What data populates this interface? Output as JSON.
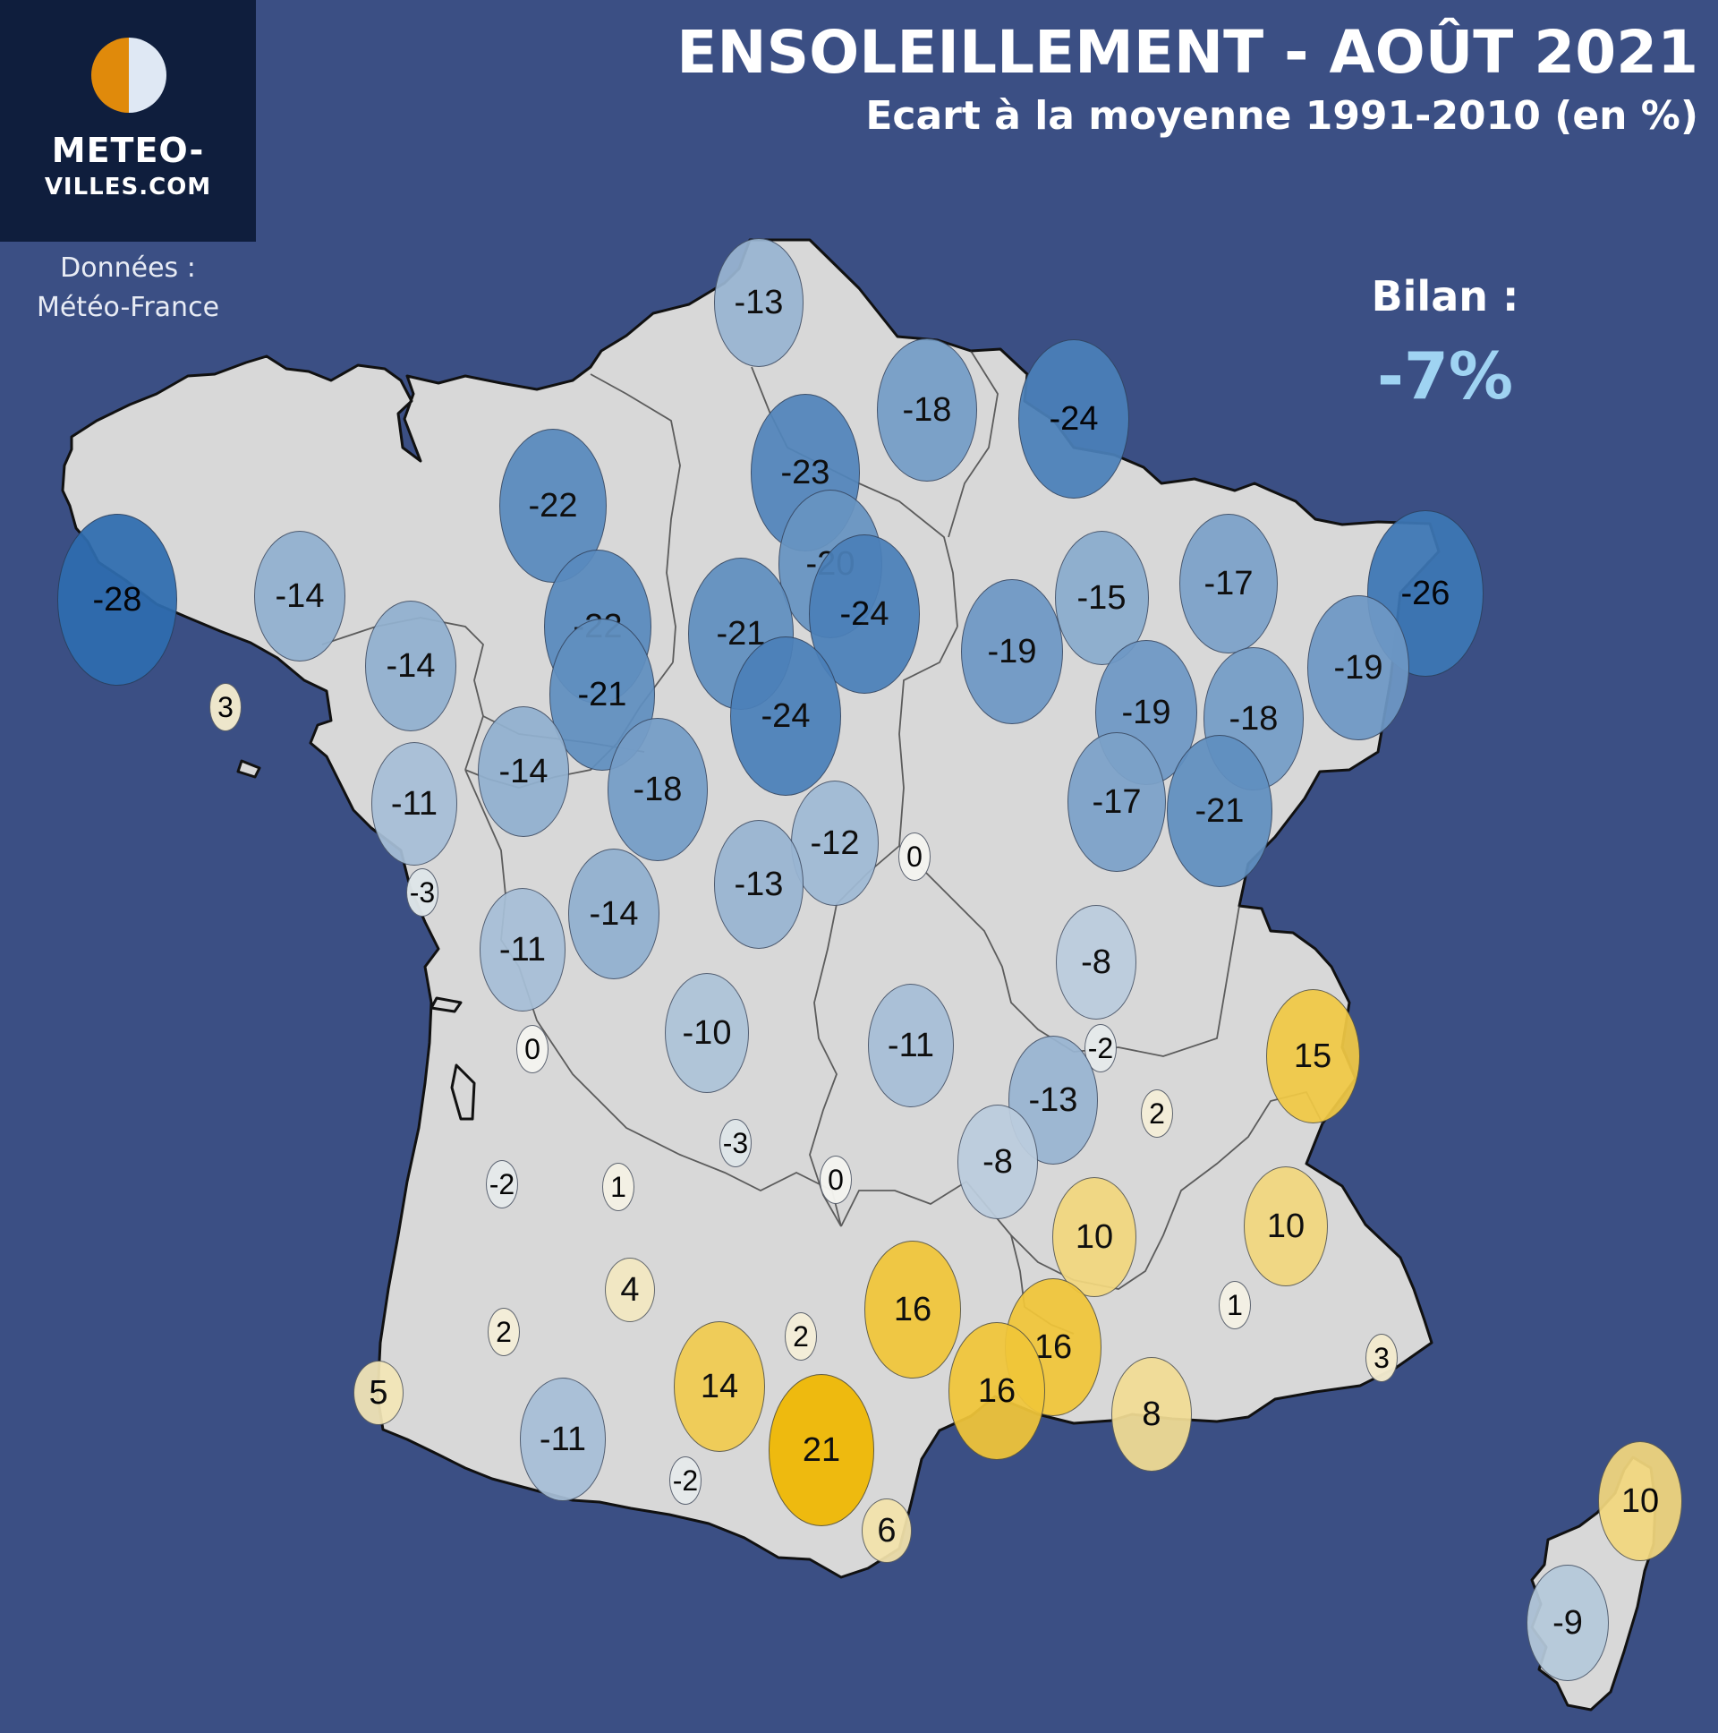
{
  "title": "ENSOLEILLEMENT - AOÛT 2021",
  "subtitle": "Ecart à la moyenne 1991-2010 (en %)",
  "logo": {
    "line1": "METEO-",
    "line2": "VILLES.COM",
    "icon": "half-sun-half-moon-icon",
    "color_sun": "#e08a0b",
    "color_moon": "#dfe8f4"
  },
  "source": {
    "line1": "Données :",
    "line2": "Météo-France"
  },
  "bilan": {
    "label": "Bilan :",
    "value": "-7%"
  },
  "colors": {
    "background": "#3b4f84",
    "land": "#d8d8d8",
    "negative": "#2f6db0",
    "positive": "#f0b800",
    "neutral": "#f4f4f0"
  },
  "stations": [
    {
      "value": -13
    },
    {
      "value": -18
    },
    {
      "value": -24
    },
    {
      "value": -23
    },
    {
      "value": -22
    },
    {
      "value": -28
    },
    {
      "value": -14
    },
    {
      "value": -20
    },
    {
      "value": -17
    },
    {
      "value": -26
    },
    {
      "value": -15
    },
    {
      "value": -22
    },
    {
      "value": -21
    },
    {
      "value": -24
    },
    {
      "value": -19
    },
    {
      "value": -14
    },
    {
      "value": -19
    },
    {
      "value": -21
    },
    {
      "value": -18
    },
    {
      "value": -19
    },
    {
      "value": 3
    },
    {
      "value": -24
    },
    {
      "value": -14
    },
    {
      "value": -18
    },
    {
      "value": -11
    },
    {
      "value": -17
    },
    {
      "value": -21
    },
    {
      "value": -12
    },
    {
      "value": 0
    },
    {
      "value": -3
    },
    {
      "value": -13
    },
    {
      "value": -14
    },
    {
      "value": -11
    },
    {
      "value": -8
    },
    {
      "value": 0
    },
    {
      "value": -10
    },
    {
      "value": -11
    },
    {
      "value": -2
    },
    {
      "value": 15
    },
    {
      "value": -13
    },
    {
      "value": 2
    },
    {
      "value": -3
    },
    {
      "value": -8
    },
    {
      "value": -2
    },
    {
      "value": 1
    },
    {
      "value": 0
    },
    {
      "value": 10
    },
    {
      "value": 10
    },
    {
      "value": 4
    },
    {
      "value": 16
    },
    {
      "value": 1
    },
    {
      "value": 2
    },
    {
      "value": 2
    },
    {
      "value": 16
    },
    {
      "value": 3
    },
    {
      "value": 14
    },
    {
      "value": 5
    },
    {
      "value": 16
    },
    {
      "value": 8
    },
    {
      "value": -11
    },
    {
      "value": 21
    },
    {
      "value": -2
    },
    {
      "value": 6
    },
    {
      "value": 10
    },
    {
      "value": -9
    }
  ]
}
